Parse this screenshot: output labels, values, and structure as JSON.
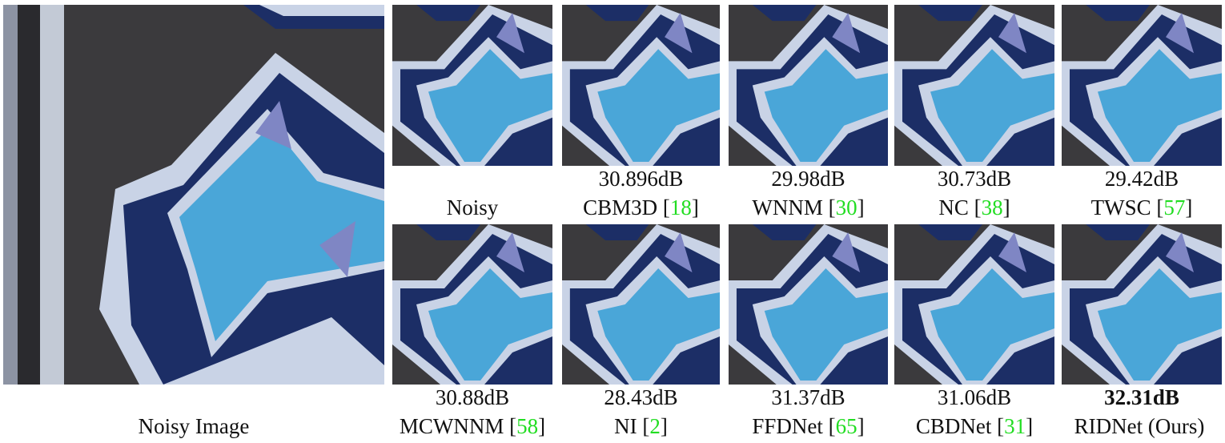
{
  "figure": {
    "main": {
      "caption": "Noisy Image"
    },
    "panels": [
      {
        "id": "noisy",
        "score": "",
        "method": "Noisy",
        "cite": ""
      },
      {
        "id": "cbm3d",
        "score": "30.896dB",
        "method": "CBM3D",
        "cite": "18"
      },
      {
        "id": "wnnm",
        "score": "29.98dB",
        "method": "WNNM",
        "cite": "30"
      },
      {
        "id": "nc",
        "score": "30.73dB",
        "method": "NC",
        "cite": "38"
      },
      {
        "id": "twsc",
        "score": "29.42dB",
        "method": "TWSC",
        "cite": "57"
      },
      {
        "id": "mcwnnm",
        "score": "30.88dB",
        "method": "MCWNNM",
        "cite": "58"
      },
      {
        "id": "ni",
        "score": "28.43dB",
        "method": "NI",
        "cite": "2"
      },
      {
        "id": "ffdnet",
        "score": "31.37dB",
        "method": "FFDNet",
        "cite": "65"
      },
      {
        "id": "cbdnet",
        "score": "31.06dB",
        "method": "CBDNet",
        "cite": "31"
      },
      {
        "id": "ridnet",
        "score": "32.31dB",
        "method": "RIDNet (Ours)",
        "cite": ""
      }
    ]
  },
  "colors": {
    "wall": "#3b3a3d",
    "outline_white": "#c9d3e6",
    "navy": "#1c2e66",
    "light_blue": "#4aa6d8",
    "lavender": "#7f86c4",
    "citation": "#22dd22"
  }
}
